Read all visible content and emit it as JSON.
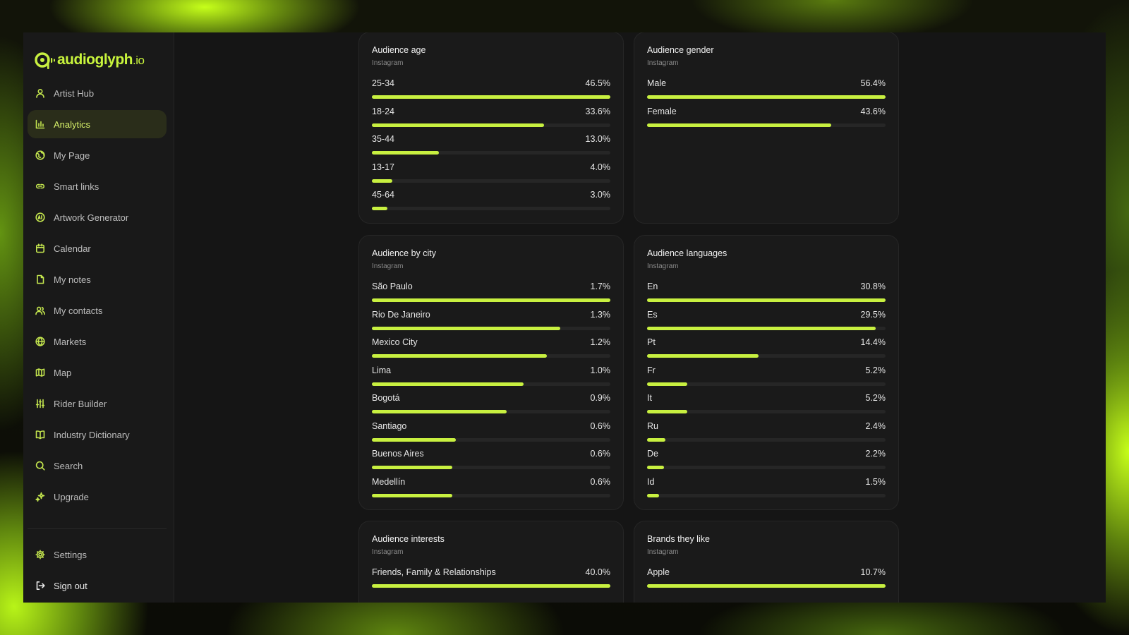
{
  "brand": {
    "name": "audioglyph",
    "tld": ".io",
    "accent": "#c8f040"
  },
  "nav": {
    "items": [
      {
        "label": "Artist Hub",
        "icon": "user-icon"
      },
      {
        "label": "Analytics",
        "icon": "bar-chart-icon",
        "active": true
      },
      {
        "label": "My Page",
        "icon": "globe-page-icon"
      },
      {
        "label": "Smart links",
        "icon": "link-icon"
      },
      {
        "label": "Artwork Generator",
        "icon": "ai-icon"
      },
      {
        "label": "Calendar",
        "icon": "calendar-icon"
      },
      {
        "label": "My notes",
        "icon": "note-icon"
      },
      {
        "label": "My contacts",
        "icon": "contacts-icon"
      },
      {
        "label": "Markets",
        "icon": "globe-icon"
      },
      {
        "label": "Map",
        "icon": "map-icon"
      },
      {
        "label": "Rider Builder",
        "icon": "sliders-icon"
      },
      {
        "label": "Industry Dictionary",
        "icon": "book-icon"
      },
      {
        "label": "Search",
        "icon": "search-icon"
      },
      {
        "label": "Upgrade",
        "icon": "sparkle-icon"
      }
    ],
    "bottom": [
      {
        "label": "Settings",
        "icon": "gear-icon"
      },
      {
        "label": "Sign out",
        "icon": "sign-out-icon"
      }
    ]
  },
  "cards": [
    {
      "title": "Audience age",
      "source": "Instagram",
      "rows": [
        {
          "label": "25-34",
          "value": "46.5%",
          "fill": 1.0
        },
        {
          "label": "18-24",
          "value": "33.6%",
          "fill": 0.723
        },
        {
          "label": "35-44",
          "value": "13.0%",
          "fill": 0.28
        },
        {
          "label": "13-17",
          "value": "4.0%",
          "fill": 0.086
        },
        {
          "label": "45-64",
          "value": "3.0%",
          "fill": 0.065
        }
      ]
    },
    {
      "title": "Audience gender",
      "source": "Instagram",
      "rows": [
        {
          "label": "Male",
          "value": "56.4%",
          "fill": 1.0
        },
        {
          "label": "Female",
          "value": "43.6%",
          "fill": 0.773
        }
      ]
    },
    {
      "title": "Audience by city",
      "source": "Instagram",
      "rows": [
        {
          "label": "São Paulo",
          "value": "1.7%",
          "fill": 1.0
        },
        {
          "label": "Rio De Janeiro",
          "value": "1.3%",
          "fill": 0.79
        },
        {
          "label": "Mexico City",
          "value": "1.2%",
          "fill": 0.733
        },
        {
          "label": "Lima",
          "value": "1.0%",
          "fill": 0.635
        },
        {
          "label": "Bogotá",
          "value": "0.9%",
          "fill": 0.565
        },
        {
          "label": "Santiago",
          "value": "0.6%",
          "fill": 0.353
        },
        {
          "label": "Buenos Aires",
          "value": "0.6%",
          "fill": 0.338
        },
        {
          "label": "Medellín",
          "value": "0.6%",
          "fill": 0.338
        }
      ]
    },
    {
      "title": "Audience languages",
      "source": "Instagram",
      "rows": [
        {
          "label": "En",
          "value": "30.8%",
          "fill": 1.0
        },
        {
          "label": "Es",
          "value": "29.5%",
          "fill": 0.958
        },
        {
          "label": "Pt",
          "value": "14.4%",
          "fill": 0.468
        },
        {
          "label": "Fr",
          "value": "5.2%",
          "fill": 0.169
        },
        {
          "label": "It",
          "value": "5.2%",
          "fill": 0.169
        },
        {
          "label": "Ru",
          "value": "2.4%",
          "fill": 0.078
        },
        {
          "label": "De",
          "value": "2.2%",
          "fill": 0.071
        },
        {
          "label": "Id",
          "value": "1.5%",
          "fill": 0.049
        }
      ]
    },
    {
      "title": "Audience interests",
      "source": "Instagram",
      "rows": [
        {
          "label": "Friends, Family & Relationships",
          "value": "40.0%",
          "fill": 1.0
        }
      ]
    },
    {
      "title": "Brands they like",
      "source": "Instagram",
      "rows": [
        {
          "label": "Apple",
          "value": "10.7%",
          "fill": 1.0
        }
      ]
    }
  ]
}
